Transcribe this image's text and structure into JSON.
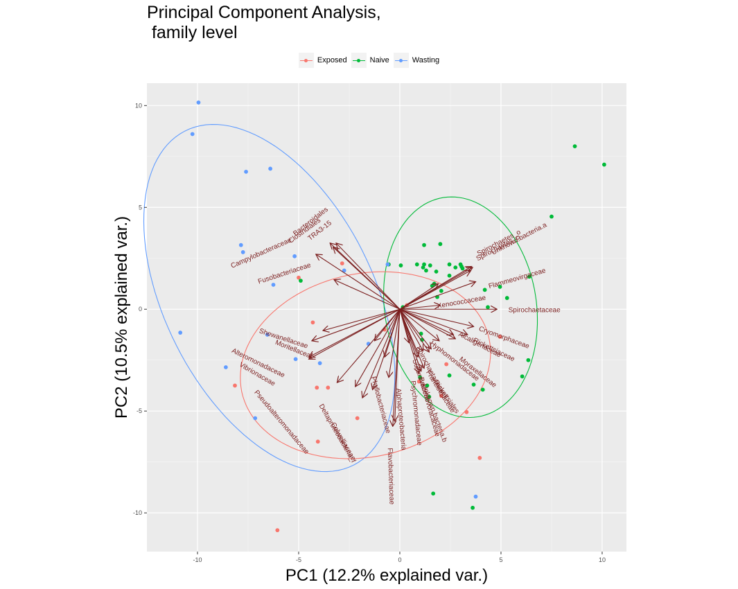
{
  "chart_data": {
    "type": "scatter",
    "title": "Principal Component Analysis,\n family level",
    "xlabel": "PC1 (12.2% explained var.)",
    "ylabel": "PC2 (10.5% explained var.)",
    "xlim": [
      -12.5,
      11.2
    ],
    "ylim": [
      -11.9,
      11.1
    ],
    "xticks": [
      -10,
      -5,
      0,
      5,
      10
    ],
    "yticks": [
      -10,
      -5,
      0,
      5,
      10
    ],
    "grid": true,
    "legend_position": "top",
    "colors": {
      "Exposed": "#F8766D",
      "Naive": "#00BA38",
      "Wasting": "#619CFF",
      "arrow": "#7B1F1F",
      "panel": "#EBEBEB",
      "grid": "#FFFFFF"
    },
    "series": [
      {
        "name": "Exposed",
        "color": "#F8766D",
        "points": [
          [
            -2.85,
            2.25
          ],
          [
            -5.0,
            1.55
          ],
          [
            -4.3,
            -0.65
          ],
          [
            -8.15,
            -3.75
          ],
          [
            -4.1,
            -3.85
          ],
          [
            -3.55,
            -3.85
          ],
          [
            -4.05,
            -6.5
          ],
          [
            -2.1,
            -5.35
          ],
          [
            -0.75,
            -1.0
          ],
          [
            0.35,
            0.2
          ],
          [
            2.3,
            -2.7
          ],
          [
            2.05,
            -4.25
          ],
          [
            3.3,
            -5.05
          ],
          [
            3.95,
            -7.3
          ],
          [
            4.95,
            -1.35
          ],
          [
            -6.05,
            -10.85
          ],
          [
            0.95,
            -3.55
          ]
        ]
      },
      {
        "name": "Naive",
        "color": "#00BA38",
        "points": [
          [
            8.65,
            8.0
          ],
          [
            10.1,
            7.1
          ],
          [
            7.5,
            4.55
          ],
          [
            6.4,
            1.6
          ],
          [
            6.35,
            -2.5
          ],
          [
            6.05,
            -3.3
          ],
          [
            5.3,
            0.55
          ],
          [
            4.95,
            1.1
          ],
          [
            4.2,
            0.95
          ],
          [
            4.35,
            0.1
          ],
          [
            -0.55,
            2.2
          ],
          [
            0.05,
            2.15
          ],
          [
            1.2,
            2.2
          ],
          [
            0.85,
            2.2
          ],
          [
            1.15,
            2.05
          ],
          [
            1.5,
            2.15
          ],
          [
            1.3,
            1.9
          ],
          [
            2.0,
            3.2
          ],
          [
            1.2,
            3.15
          ],
          [
            1.8,
            1.85
          ],
          [
            2.45,
            1.65
          ],
          [
            2.75,
            2.05
          ],
          [
            2.45,
            2.2
          ],
          [
            3.0,
            2.2
          ],
          [
            3.05,
            2.1
          ],
          [
            3.1,
            2.0
          ],
          [
            1.7,
            1.25
          ],
          [
            1.6,
            1.15
          ],
          [
            1.85,
            0.6
          ],
          [
            2.05,
            0.9
          ],
          [
            1.05,
            -1.2
          ],
          [
            1.0,
            -3.35
          ],
          [
            1.35,
            -3.75
          ],
          [
            1.45,
            -4.3
          ],
          [
            2.45,
            -3.25
          ],
          [
            3.65,
            -3.7
          ],
          [
            4.1,
            -3.95
          ],
          [
            1.65,
            -9.05
          ],
          [
            3.6,
            -9.75
          ],
          [
            -4.9,
            1.4
          ],
          [
            1.1,
            -1.5
          ],
          [
            0.15,
            0.1
          ]
        ]
      },
      {
        "name": "Wasting",
        "color": "#619CFF",
        "points": [
          [
            -9.95,
            10.15
          ],
          [
            -10.25,
            8.6
          ],
          [
            -6.4,
            6.9
          ],
          [
            -7.6,
            6.75
          ],
          [
            -5.2,
            2.6
          ],
          [
            -7.85,
            3.15
          ],
          [
            -7.75,
            2.8
          ],
          [
            -6.25,
            1.2
          ],
          [
            -2.75,
            1.9
          ],
          [
            -0.6,
            2.2
          ],
          [
            -10.85,
            -1.15
          ],
          [
            -6.55,
            -1.25
          ],
          [
            -8.6,
            -2.85
          ],
          [
            -5.15,
            -2.45
          ],
          [
            -3.95,
            -2.65
          ],
          [
            -1.55,
            -1.7
          ],
          [
            -7.15,
            -5.35
          ],
          [
            3.75,
            -9.2
          ]
        ]
      }
    ],
    "ellipses": [
      {
        "group": "Wasting",
        "cx": -6.45,
        "cy": 0.55,
        "rx": 9.2,
        "ry": 5.15,
        "angle_deg": -63
      },
      {
        "group": "Naive",
        "cx": 3.0,
        "cy": 0.1,
        "rx": 5.45,
        "ry": 3.75,
        "angle_deg": 99
      },
      {
        "group": "Exposed",
        "cx": -1.7,
        "cy": -2.75,
        "rx": 6.25,
        "ry": 4.5,
        "angle_deg": 12
      }
    ],
    "loadings": [
      {
        "label": "TRA3-15",
        "x": -3.15,
        "y": 3.25,
        "label_x": -3.95,
        "label_y": 3.85,
        "rot": 38
      },
      {
        "label": "Bacteroidales",
        "x": -3.45,
        "y": 3.25,
        "label_x": -4.4,
        "label_y": 4.3,
        "rot": 38
      },
      {
        "label": "Clostridiales",
        "x": -3.3,
        "y": 3.05,
        "label_x": -4.7,
        "label_y": 3.85,
        "rot": 36
      },
      {
        "label": "Campylobacteraceae",
        "x": -4.15,
        "y": 2.7,
        "label_x": -6.85,
        "label_y": 2.75,
        "rot": 24
      },
      {
        "label": "Fusobacteriaceae",
        "x": -3.25,
        "y": 1.45,
        "label_x": -5.7,
        "label_y": 1.75,
        "rot": 18
      },
      {
        "label": "Shewanellaceae",
        "x": -3.8,
        "y": -1.05,
        "label_x": -5.75,
        "label_y": -1.45,
        "rot": -18
      },
      {
        "label": "Moritellaceae",
        "x": -4.35,
        "y": -1.55,
        "label_x": -5.2,
        "label_y": -2.0,
        "rot": -22
      },
      {
        "label": "Alteromonadaceae",
        "x": -4.5,
        "y": -2.35,
        "label_x": -7.0,
        "label_y": -2.65,
        "rot": -26
      },
      {
        "label": "Vibrionaceae",
        "x": -4.5,
        "y": -2.45,
        "label_x": -7.05,
        "label_y": -3.2,
        "rot": -30
      },
      {
        "label": "Pseudoalteromonadaceae",
        "x": -3.1,
        "y": -3.6,
        "label_x": -5.85,
        "label_y": -5.55,
        "rot": -50
      },
      {
        "label": "Deltaproteobacteria_f",
        "x": -1.85,
        "y": -4.35,
        "label_x": -3.1,
        "label_y": -6.1,
        "rot": -60
      },
      {
        "label": "Colwelliaceae",
        "x": -1.35,
        "y": -3.95,
        "label_x": -2.8,
        "label_y": -6.5,
        "rot": -60
      },
      {
        "label": "Phyllobacteriaceae",
        "x": -0.55,
        "y": -3.35,
        "label_x": -0.95,
        "label_y": -4.7,
        "rot": -75
      },
      {
        "label": "Alphaproteobacteria",
        "x": -0.25,
        "y": -5.5,
        "label_x": 0.05,
        "label_y": -5.4,
        "rot": -85
      },
      {
        "label": "Flavobacteriaceae",
        "x": -0.35,
        "y": -5.75,
        "label_x": -0.45,
        "label_y": -8.2,
        "rot": -88
      },
      {
        "label": "Psychromonadaceae",
        "x": 0.95,
        "y": -3.15,
        "label_x": 0.8,
        "label_y": -5.1,
        "rot": -84
      },
      {
        "label": "Bacteriovoracaceae",
        "x": 1.05,
        "y": -3.05,
        "label_x": 1.45,
        "label_y": -4.8,
        "rot": -74
      },
      {
        "label": "Unknown.bacteria.b",
        "x": 1.2,
        "y": -2.9,
        "label_x": 1.7,
        "label_y": -5.1,
        "rot": -70
      },
      {
        "label": "Sulfurovaceae",
        "x": 0.9,
        "y": -2.35,
        "label_x": 1.05,
        "label_y": -3.5,
        "rot": -72
      },
      {
        "label": "Spirochaetaceae_f",
        "x": 1.15,
        "y": -2.05,
        "label_x": 1.55,
        "label_y": -3.1,
        "rot": -62
      },
      {
        "label": "Francisellaceae",
        "x": 1.45,
        "y": -2.1,
        "label_x": 2.0,
        "label_y": -4.05,
        "rot": -58
      },
      {
        "label": "Rickettsiales",
        "x": 1.55,
        "y": -1.95,
        "label_x": 2.3,
        "label_y": -4.3,
        "rot": -55
      },
      {
        "label": "Hyphomonadaceae",
        "x": 1.95,
        "y": -1.55,
        "label_x": 2.7,
        "label_y": -2.55,
        "rot": -38
      },
      {
        "label": "Moraxellaceae",
        "x": 2.75,
        "y": -1.45,
        "label_x": 3.85,
        "label_y": -3.1,
        "rot": -38
      },
      {
        "label": "Alcaligenaceae",
        "x": 2.65,
        "y": -1.25,
        "label_x": 3.95,
        "label_y": -1.75,
        "rot": -28
      },
      {
        "label": "Rickettsiaceae",
        "x": 3.35,
        "y": -1.25,
        "label_x": 4.65,
        "label_y": -2.0,
        "rot": -26
      },
      {
        "label": "Cryomorphaceae",
        "x": 3.65,
        "y": -0.85,
        "label_x": 5.15,
        "label_y": -1.4,
        "rot": -20
      },
      {
        "label": "Spirochaetaceae",
        "x": 4.8,
        "y": 0.0,
        "label_x": 6.65,
        "label_y": -0.05,
        "rot": 0
      },
      {
        "label": "Xenococcaceae",
        "x": 2.0,
        "y": 0.2,
        "label_x": 3.05,
        "label_y": 0.35,
        "rot": 10
      },
      {
        "label": "Flammeovirgaceae",
        "x": 3.75,
        "y": 1.35,
        "label_x": 5.8,
        "label_y": 1.5,
        "rot": 16
      },
      {
        "label": "Spirochaetes_o",
        "x": 3.55,
        "y": 2.1,
        "label_x": 4.9,
        "label_y": 3.25,
        "rot": 28
      },
      {
        "label": "Spirochaetes_c",
        "x": 3.6,
        "y": 2.05,
        "label_x": 4.85,
        "label_y": 3.0,
        "rot": 28
      },
      {
        "label": "Unknown.bacteria.a",
        "x": 3.5,
        "y": 1.9,
        "label_x": 5.9,
        "label_y": 3.45,
        "rot": 28
      },
      {
        "label": "",
        "x": 1.9,
        "y": 1.25,
        "label_x": 1.9,
        "label_y": 1.25,
        "rot": 0
      },
      {
        "label": "",
        "x": -0.75,
        "y": -2.35,
        "label_x": -0.75,
        "label_y": -2.35,
        "rot": 0
      },
      {
        "label": "",
        "x": 0.45,
        "y": -1.65,
        "label_x": 0.45,
        "label_y": -1.65,
        "rot": 0
      },
      {
        "label": "",
        "x": -2.2,
        "y": -3.8,
        "label_x": -2.2,
        "label_y": -3.8,
        "rot": 0
      },
      {
        "label": "",
        "x": -1.25,
        "y": -1.55,
        "label_x": -1.25,
        "label_y": -1.55,
        "rot": 0
      }
    ]
  }
}
